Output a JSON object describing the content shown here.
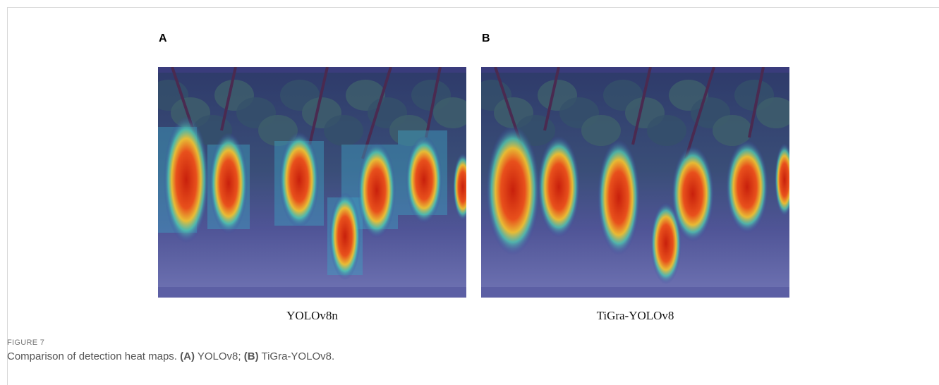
{
  "panels": [
    {
      "letter": "A",
      "label": "YOLOv8n"
    },
    {
      "letter": "B",
      "label": "TiGra-YOLOv8"
    }
  ],
  "figure": {
    "label": "FIGURE 7",
    "intro": "Comparison of detection heat maps.",
    "items": [
      {
        "tag": "(A)",
        "text": "YOLOv8;"
      },
      {
        "tag": "(B)",
        "text": "TiGra-YOLOv8."
      }
    ]
  }
}
